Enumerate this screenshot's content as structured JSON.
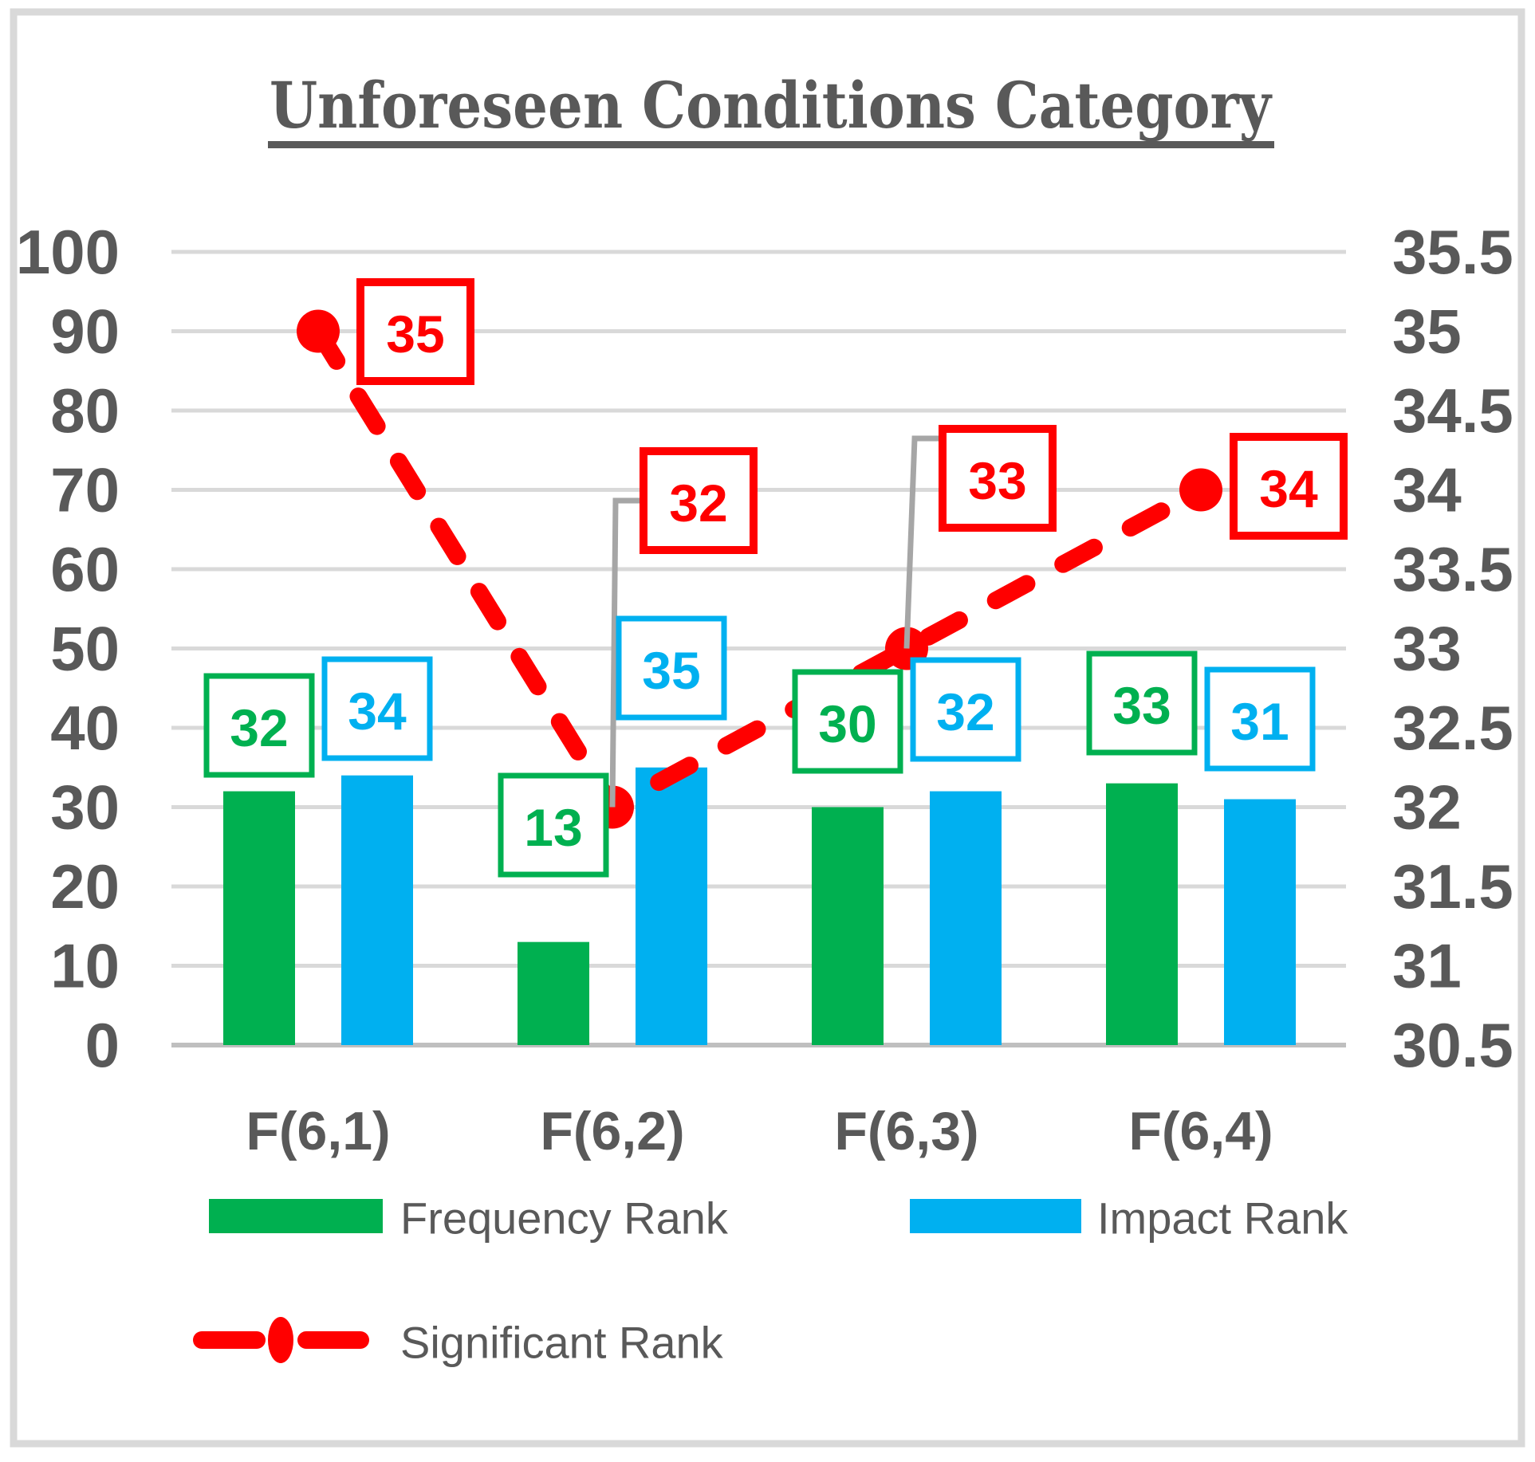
{
  "title": "Unforeseen Conditions Category",
  "chart_data": {
    "type": "combo",
    "categories": [
      "F(6,1)",
      "F(6,2)",
      "F(6,3)",
      "F(6,4)"
    ],
    "series": [
      {
        "name": "Frequency Rank",
        "chart": "bar",
        "axis": "left",
        "values": [
          32,
          13,
          30,
          33
        ]
      },
      {
        "name": "Impact Rank",
        "chart": "bar",
        "axis": "left",
        "values": [
          34,
          35,
          32,
          31
        ]
      },
      {
        "name": "Significant Rank",
        "chart": "line",
        "axis": "right",
        "values": [
          35,
          32,
          33,
          34
        ]
      }
    ],
    "data_labels_shown": true,
    "left_axis": {
      "min": 0,
      "max": 100,
      "step": 10,
      "ticks": [
        "100",
        "90",
        "80",
        "70",
        "60",
        "50",
        "40",
        "30",
        "20",
        "10",
        "0"
      ]
    },
    "right_axis": {
      "min": 30.5,
      "max": 35.5,
      "step": 0.5,
      "ticks": [
        "35.5",
        "35",
        "34.5",
        "34",
        "33.5",
        "33",
        "32.5",
        "32",
        "31.5",
        "31",
        "30.5"
      ]
    },
    "grid": true,
    "legend_position": "bottom"
  },
  "colors": {
    "frequency": "#00B050",
    "impact": "#00B0F0",
    "significant": "#FF0000",
    "text": "#595959",
    "grid": "#D9D9D9",
    "axis_line": "#BFBFBF",
    "leader": "#A6A6A6",
    "frame": "#D9D9D9",
    "background": "#FFFFFF"
  }
}
